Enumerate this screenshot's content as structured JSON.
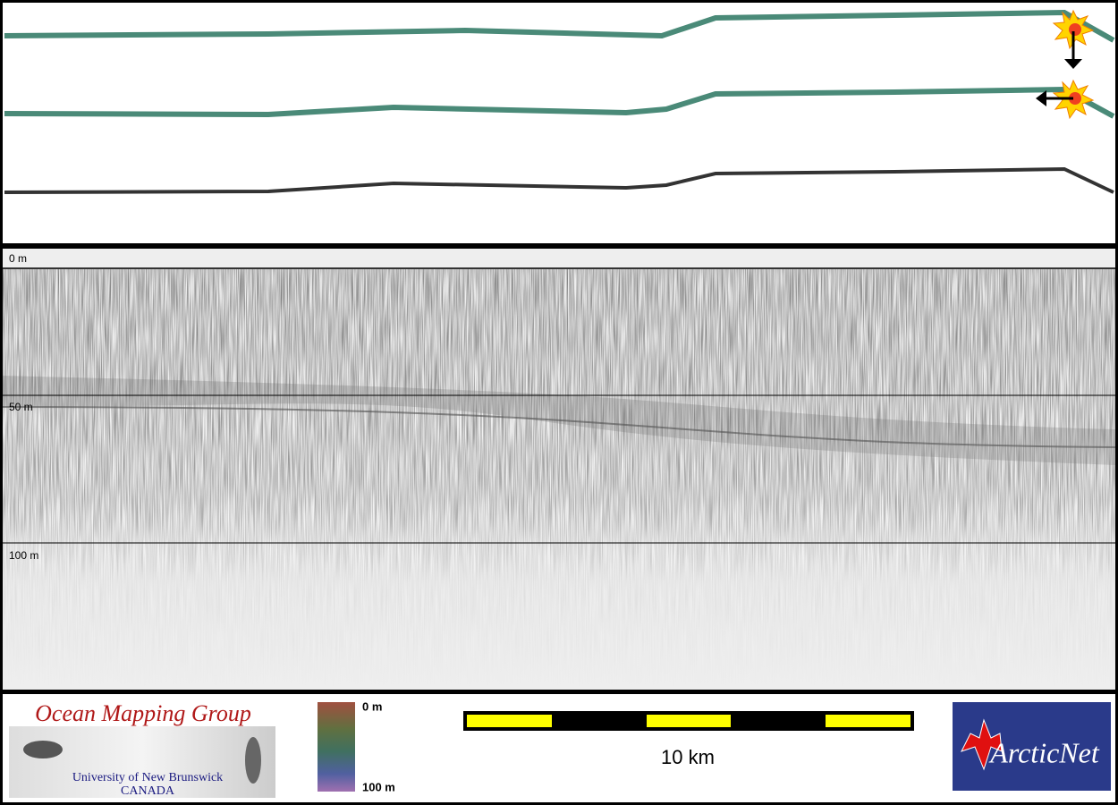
{
  "profile": {
    "depth_labels": [
      "0 m",
      "50 m",
      "100 m"
    ]
  },
  "legend": {
    "color_scale": {
      "top": "0 m",
      "bottom": "100 m"
    },
    "scale_bar": "10 km"
  },
  "logos": {
    "left": {
      "title": "Ocean Mapping Group",
      "line1": "University of New Brunswick",
      "line2": "CANADA"
    },
    "right": {
      "title": "ArcticNet"
    }
  }
}
